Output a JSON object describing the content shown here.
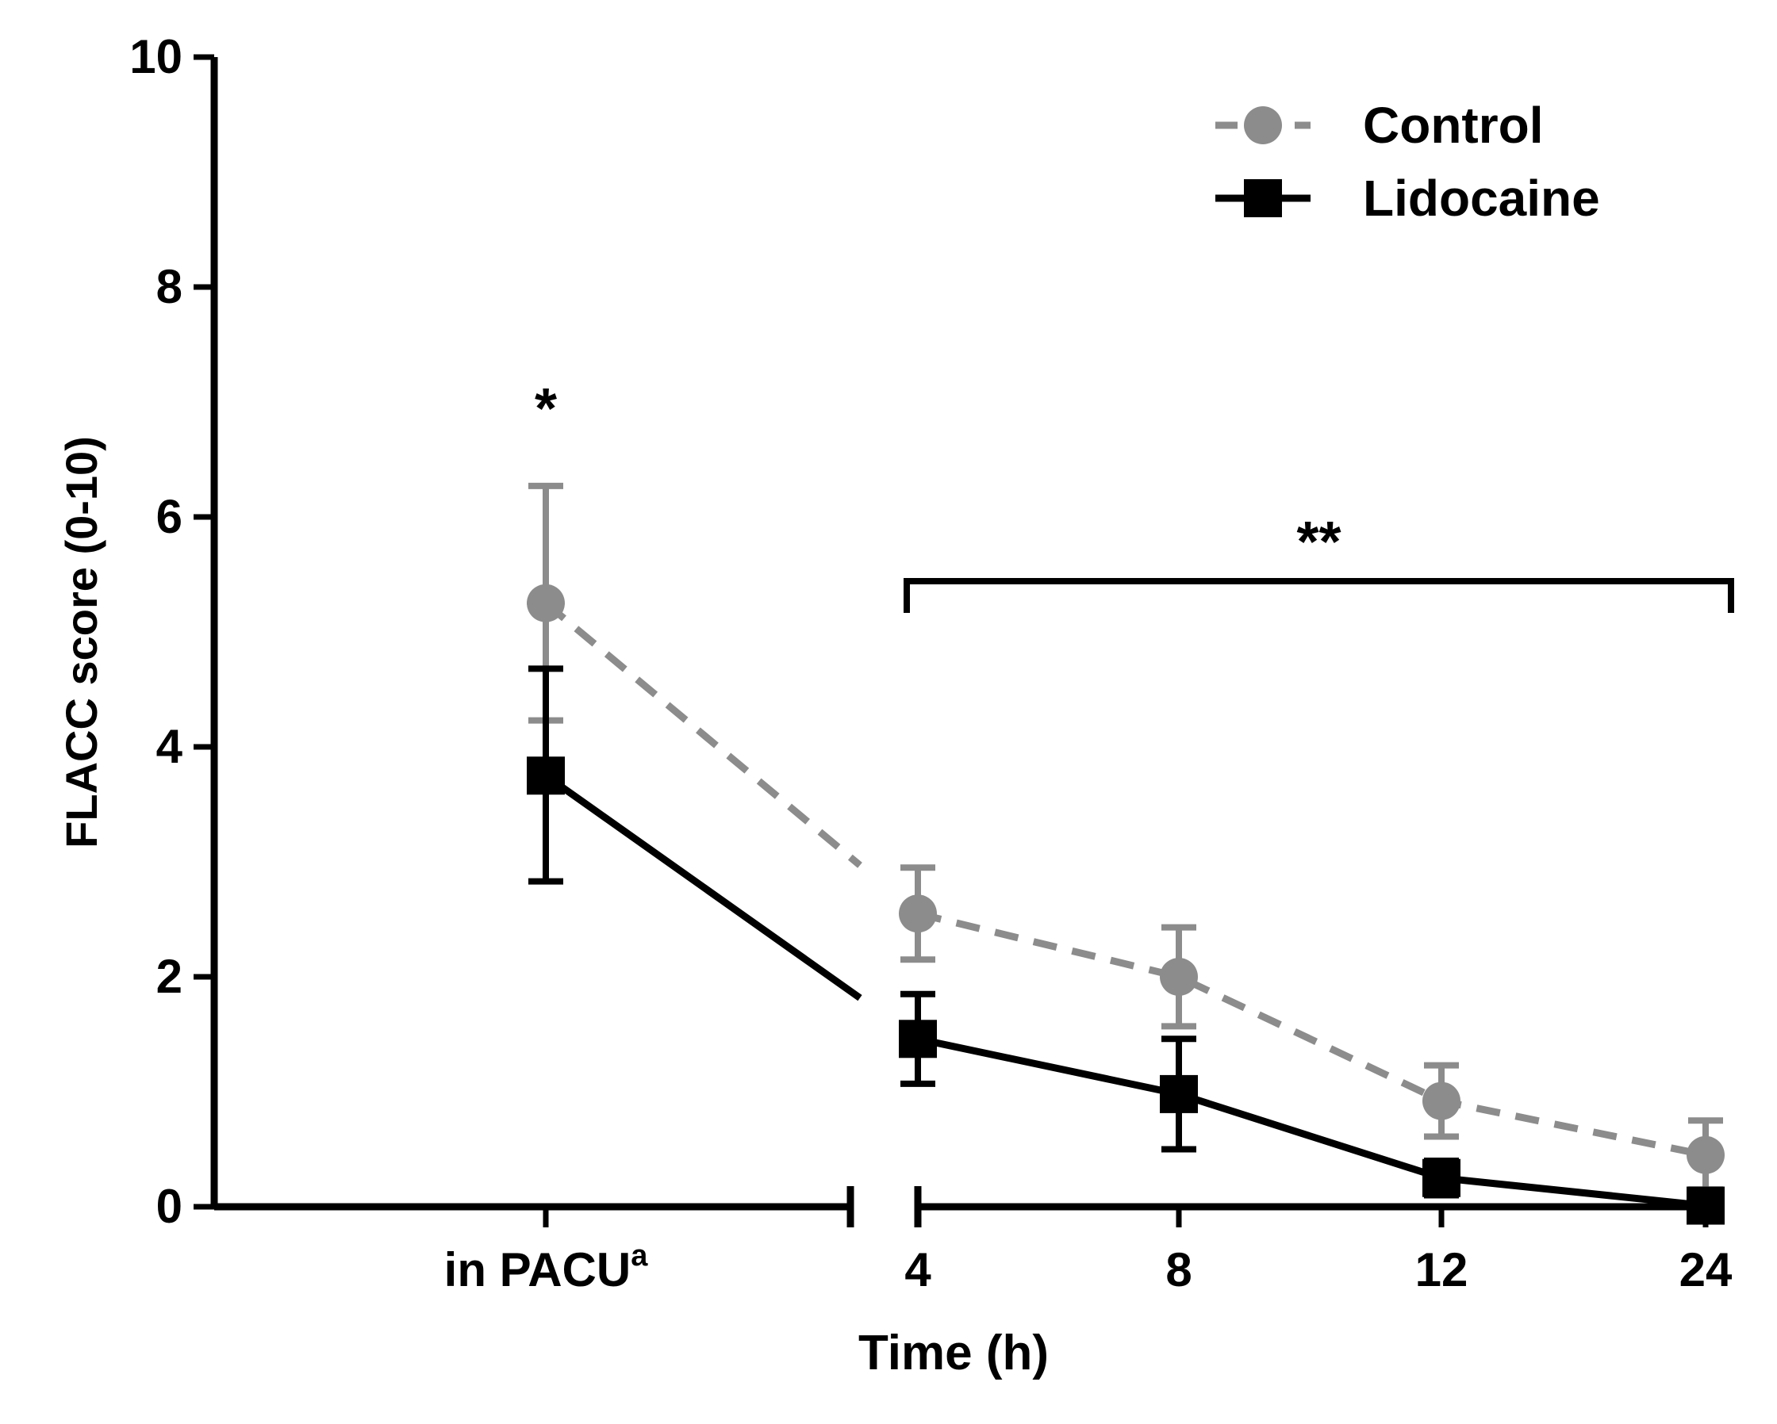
{
  "chart_data": {
    "type": "line",
    "title": "",
    "xlabel": "Time (h)",
    "ylabel": "FLACC score (0-10)",
    "ylim": [
      0,
      10
    ],
    "yticks": [
      "0",
      "2",
      "4",
      "6",
      "8",
      "10"
    ],
    "categories": [
      {
        "label": "in  PACU",
        "sup": "a"
      },
      {
        "label": "4",
        "sup": ""
      },
      {
        "label": "8",
        "sup": ""
      },
      {
        "label": "12",
        "sup": ""
      },
      {
        "label": "24",
        "sup": ""
      }
    ],
    "axis_break": "between in PACU and 4",
    "series": [
      {
        "name": "Control",
        "color": "#8c8c8c",
        "line_style": "dashed",
        "marker": "circle",
        "values": [
          5.25,
          2.55,
          2.0,
          0.92,
          0.45
        ],
        "err_upper": [
          6.27,
          2.95,
          2.43,
          1.23,
          0.75
        ],
        "err_lower": [
          4.23,
          2.15,
          1.57,
          0.61,
          0.15
        ]
      },
      {
        "name": "Lidocaine",
        "color": "#000000",
        "line_style": "solid",
        "marker": "square",
        "values": [
          3.75,
          1.46,
          0.98,
          0.25,
          0.01
        ],
        "err_upper": [
          4.68,
          1.85,
          1.46,
          0.4,
          0.05
        ],
        "err_lower": [
          2.83,
          1.07,
          0.5,
          0.1,
          0.0
        ]
      }
    ],
    "annotations": [
      {
        "text": "*",
        "category_index": 0
      },
      {
        "text": "**",
        "from_index": 1,
        "to_index": 4
      }
    ],
    "legend": {
      "position": "top-right"
    }
  }
}
